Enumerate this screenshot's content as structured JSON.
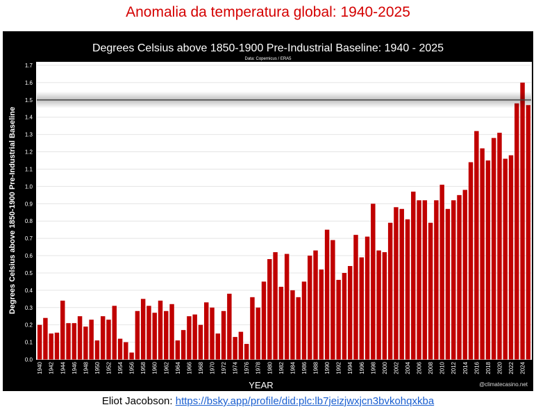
{
  "page_title": "Anomalia da temperatura global: 1940-2025",
  "caption": {
    "author": "Eliot Jacobson: ",
    "link": "https://bsky.app/profile/did:plc:lb7jeizjwxjcn3bvkohqxkba"
  },
  "chart_data": {
    "type": "bar",
    "title": "Degrees Celsius above 1850-1900 Pre-Industrial Baseline: 1940 - 2025",
    "subtitle": "Data: Copernicus / ERA5",
    "xlabel": "YEAR",
    "ylabel": "Degrees Celsius above 1850-1900 Pre-Industrial Baseline",
    "watermark": "@climatecasino.net",
    "ylim": [
      0,
      1.7
    ],
    "yticks": [
      "0.0",
      "0.1",
      "0.2",
      "0.3",
      "0.4",
      "0.5",
      "0.6",
      "0.7",
      "0.8",
      "0.9",
      "1.0",
      "1.1",
      "1.2",
      "1.3",
      "1.4",
      "1.5",
      "1.6",
      "1.7"
    ],
    "grid": true,
    "reference_line": 1.5,
    "bar_color": "#c00000",
    "categories": [
      1940,
      1941,
      1942,
      1943,
      1944,
      1945,
      1946,
      1947,
      1948,
      1949,
      1950,
      1951,
      1952,
      1953,
      1954,
      1955,
      1956,
      1957,
      1958,
      1959,
      1960,
      1961,
      1962,
      1963,
      1964,
      1965,
      1966,
      1967,
      1968,
      1969,
      1970,
      1971,
      1972,
      1973,
      1974,
      1975,
      1976,
      1977,
      1978,
      1979,
      1980,
      1981,
      1982,
      1983,
      1984,
      1985,
      1986,
      1987,
      1988,
      1989,
      1990,
      1991,
      1992,
      1993,
      1994,
      1995,
      1996,
      1997,
      1998,
      1999,
      2000,
      2001,
      2002,
      2003,
      2004,
      2005,
      2006,
      2007,
      2008,
      2009,
      2010,
      2011,
      2012,
      2013,
      2014,
      2015,
      2016,
      2017,
      2018,
      2019,
      2020,
      2021,
      2022,
      2023,
      2024,
      2025
    ],
    "values": [
      0.2,
      0.24,
      0.15,
      0.155,
      0.34,
      0.21,
      0.21,
      0.25,
      0.19,
      0.23,
      0.11,
      0.25,
      0.23,
      0.31,
      0.12,
      0.1,
      0.04,
      0.28,
      0.35,
      0.31,
      0.27,
      0.34,
      0.28,
      0.32,
      0.11,
      0.17,
      0.25,
      0.26,
      0.2,
      0.33,
      0.3,
      0.15,
      0.28,
      0.38,
      0.13,
      0.16,
      0.09,
      0.36,
      0.3,
      0.45,
      0.58,
      0.62,
      0.42,
      0.61,
      0.4,
      0.36,
      0.45,
      0.6,
      0.63,
      0.52,
      0.75,
      0.69,
      0.46,
      0.5,
      0.54,
      0.72,
      0.59,
      0.71,
      0.9,
      0.63,
      0.62,
      0.79,
      0.88,
      0.87,
      0.81,
      0.97,
      0.92,
      0.92,
      0.79,
      0.92,
      1.01,
      0.87,
      0.92,
      0.95,
      0.98,
      1.14,
      1.32,
      1.22,
      1.15,
      1.28,
      1.31,
      1.16,
      1.18,
      1.48,
      1.6,
      1.47
    ]
  }
}
